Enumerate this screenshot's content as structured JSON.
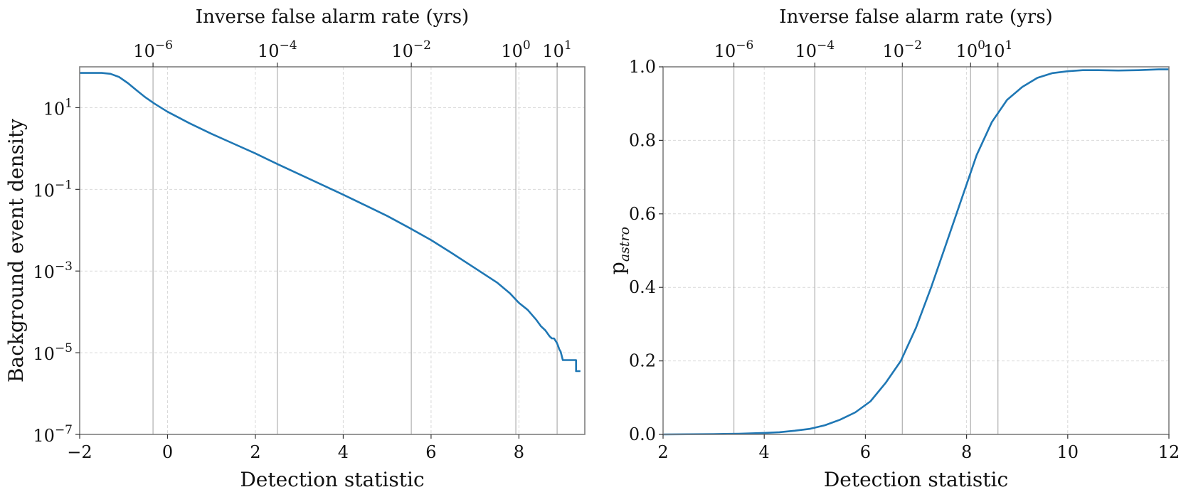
{
  "colors": {
    "line": "#1f77b4"
  },
  "chart_data": [
    {
      "id": "left",
      "type": "line",
      "xlabel": "Detection statistic",
      "ylabel": "Background event density",
      "top_xlabel": "Inverse false alarm rate (yrs)",
      "xlim": [
        -2,
        9.5
      ],
      "yscale": "log",
      "ylim_exp": [
        -7,
        2
      ],
      "xticks": [
        -2,
        0,
        2,
        4,
        6,
        8
      ],
      "xtick_labels": [
        "−2",
        "0",
        "2",
        "4",
        "6",
        "8"
      ],
      "yticks_exp": [
        -7,
        -5,
        -3,
        -1,
        1
      ],
      "ytick_labels": [
        {
          "base": "10",
          "exp": "−7"
        },
        {
          "base": "10",
          "exp": "−5"
        },
        {
          "base": "10",
          "exp": "−3"
        },
        {
          "base": "10",
          "exp": "−1"
        },
        {
          "base": "10",
          "exp": "1"
        }
      ],
      "top_ticks": [
        {
          "x": -0.33,
          "base": "10",
          "exp": "−6"
        },
        {
          "x": 2.5,
          "base": "10",
          "exp": "−4"
        },
        {
          "x": 5.55,
          "base": "10",
          "exp": "−2"
        },
        {
          "x": 7.93,
          "base": "10",
          "exp": "0"
        },
        {
          "x": 8.87,
          "base": "10",
          "exp": "1"
        }
      ],
      "series": [
        {
          "name": "background density",
          "x": [
            -2.0,
            -1.5,
            -1.3,
            -1.1,
            -0.9,
            -0.7,
            -0.5,
            -0.3,
            0.0,
            0.5,
            1.0,
            1.5,
            2.0,
            2.5,
            3.0,
            3.5,
            4.0,
            4.5,
            5.0,
            5.5,
            6.0,
            6.5,
            7.0,
            7.5,
            7.8,
            8.0,
            8.2,
            8.4,
            8.5,
            8.6,
            8.7,
            8.75,
            8.8,
            8.83,
            8.86,
            8.88,
            8.9,
            8.92,
            8.95,
            9.0,
            9.3,
            9.3,
            9.4
          ],
          "y_log10": [
            1.85,
            1.85,
            1.83,
            1.75,
            1.6,
            1.42,
            1.25,
            1.1,
            0.9,
            0.62,
            0.36,
            0.12,
            -0.12,
            -0.38,
            -0.63,
            -0.88,
            -1.13,
            -1.39,
            -1.65,
            -1.94,
            -2.24,
            -2.58,
            -2.93,
            -3.28,
            -3.55,
            -3.78,
            -3.95,
            -4.2,
            -4.35,
            -4.45,
            -4.6,
            -4.65,
            -4.65,
            -4.7,
            -4.75,
            -4.8,
            -4.86,
            -4.92,
            -4.97,
            -5.18,
            -5.18,
            -5.45,
            -5.45
          ]
        }
      ]
    },
    {
      "id": "right",
      "type": "line",
      "xlabel": "Detection statistic",
      "ylabel": "p",
      "ylabel_sub": "astro",
      "top_xlabel": "Inverse false alarm rate (yrs)",
      "xlim": [
        2,
        12
      ],
      "ylim": [
        0,
        1
      ],
      "xticks": [
        2,
        4,
        6,
        8,
        10,
        12
      ],
      "xtick_labels": [
        "2",
        "4",
        "6",
        "8",
        "10",
        "12"
      ],
      "yticks": [
        0,
        0.2,
        0.4,
        0.6,
        0.8,
        1.0
      ],
      "ytick_labels": [
        "0.0",
        "0.2",
        "0.4",
        "0.6",
        "0.8",
        "1.0"
      ],
      "top_ticks": [
        {
          "x": 3.4,
          "base": "10",
          "exp": "−6"
        },
        {
          "x": 5.0,
          "base": "10",
          "exp": "−4"
        },
        {
          "x": 6.73,
          "base": "10",
          "exp": "−2"
        },
        {
          "x": 8.08,
          "base": "10",
          "exp": "0"
        },
        {
          "x": 8.62,
          "base": "10",
          "exp": "1"
        }
      ],
      "series": [
        {
          "name": "p_astro",
          "x": [
            2.0,
            3.0,
            3.5,
            4.0,
            4.3,
            4.6,
            4.9,
            5.2,
            5.5,
            5.8,
            6.1,
            6.4,
            6.7,
            7.0,
            7.3,
            7.6,
            7.9,
            8.2,
            8.5,
            8.8,
            9.1,
            9.4,
            9.7,
            10.0,
            10.3,
            10.6,
            11.0,
            11.4,
            11.8,
            12.0
          ],
          "y": [
            0.0,
            0.001,
            0.002,
            0.004,
            0.006,
            0.01,
            0.015,
            0.025,
            0.04,
            0.06,
            0.09,
            0.14,
            0.2,
            0.29,
            0.4,
            0.52,
            0.64,
            0.76,
            0.85,
            0.91,
            0.945,
            0.97,
            0.983,
            0.988,
            0.991,
            0.991,
            0.99,
            0.991,
            0.993,
            0.993
          ]
        }
      ]
    }
  ]
}
